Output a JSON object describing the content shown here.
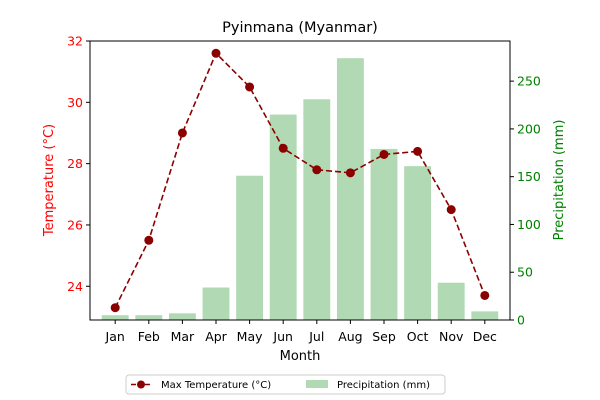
{
  "chart_data": {
    "type": "bar+line",
    "title": "Pyinmana (Myanmar)",
    "xlabel": "Month",
    "categories": [
      "Jan",
      "Feb",
      "Mar",
      "Apr",
      "May",
      "Jun",
      "Jul",
      "Aug",
      "Sep",
      "Oct",
      "Nov",
      "Dec"
    ],
    "left_axis": {
      "label": "Temperature (°C)",
      "color": "#ff0000",
      "range": [
        22.9,
        32.0
      ],
      "ticks": [
        24,
        26,
        28,
        30,
        32
      ]
    },
    "right_axis": {
      "label": "Precipitation (mm)",
      "color": "#008000",
      "range": [
        0,
        292
      ],
      "ticks": [
        0,
        50,
        100,
        150,
        200,
        250
      ]
    },
    "series": [
      {
        "name": "Max Temperature (°C)",
        "type": "line",
        "axis": "left",
        "color": "#8b0000",
        "style": "dashed",
        "marker": "circle",
        "values": [
          23.3,
          25.5,
          29.0,
          31.6,
          30.5,
          28.5,
          27.8,
          27.7,
          28.3,
          28.4,
          26.5,
          23.7
        ]
      },
      {
        "name": "Precipitation (mm)",
        "type": "bar",
        "axis": "right",
        "color": "#b1d9b3",
        "values": [
          5,
          5,
          7,
          34,
          151,
          215,
          231,
          274,
          179,
          161,
          39,
          9
        ]
      }
    ],
    "legend": {
      "placement": "bottom-center",
      "entries": [
        "Max Temperature (°C)",
        "Precipitation (mm)"
      ]
    },
    "grid": false
  }
}
